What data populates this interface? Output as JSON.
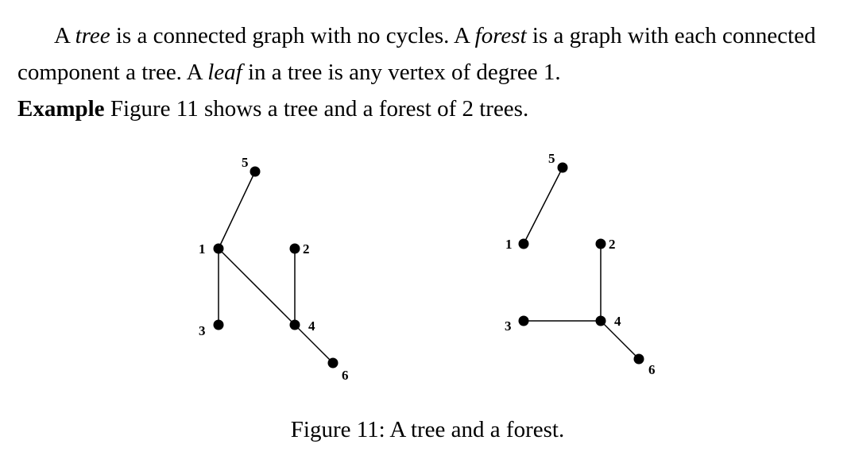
{
  "paragraph": {
    "s1_pre": "A ",
    "s1_term": "tree",
    "s1_post": " is a connected graph with no cycles. A ",
    "s2_term": "forest",
    "s2_post": " is a graph with each connected component a tree. A ",
    "s3_term": "leaf",
    "s3_post": " in a tree is any vertex of degree 1."
  },
  "example": {
    "label": "Example",
    "text": " Figure 11 shows a tree and a forest of 2 trees."
  },
  "figure": {
    "caption": "Figure 11: A tree and a forest.",
    "graphs": [
      {
        "vertices": [
          {
            "label": "5"
          },
          {
            "label": "1"
          },
          {
            "label": "2"
          },
          {
            "label": "3"
          },
          {
            "label": "4"
          },
          {
            "label": "6"
          }
        ],
        "edges": [
          [
            "5",
            "1"
          ],
          [
            "1",
            "3"
          ],
          [
            "1",
            "4"
          ],
          [
            "2",
            "4"
          ],
          [
            "4",
            "6"
          ]
        ]
      },
      {
        "vertices": [
          {
            "label": "5"
          },
          {
            "label": "1"
          },
          {
            "label": "2"
          },
          {
            "label": "3"
          },
          {
            "label": "4"
          },
          {
            "label": "6"
          }
        ],
        "edges": [
          [
            "5",
            "1"
          ],
          [
            "2",
            "4"
          ],
          [
            "3",
            "4"
          ],
          [
            "4",
            "6"
          ]
        ]
      }
    ]
  }
}
